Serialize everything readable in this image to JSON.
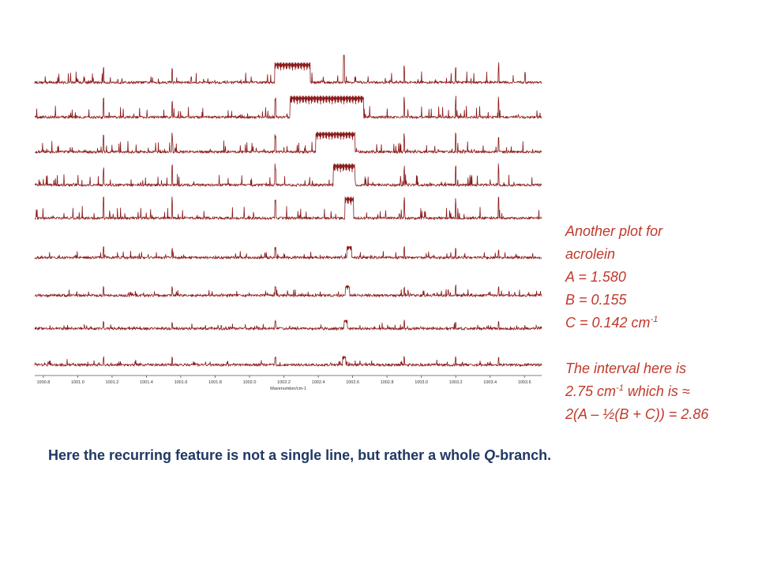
{
  "annotation": {
    "lines": [
      "Another plot for",
      "acrolein",
      "A = 1.580",
      "B = 0.155"
    ],
    "c_line": {
      "text": "C = 0.142 cm",
      "sup": "-1"
    },
    "interval_line1": "The interval here is",
    "interval_line2": {
      "text_a": "2.75 cm",
      "sup": "-1",
      "text_b": " which is ≈"
    },
    "interval_line3": "2(A – ½(B + C)) = 2.86"
  },
  "caption": {
    "prefix": "Here the recurring feature is not a single line, but rather a whole ",
    "italic": "Q",
    "suffix": "-branch."
  },
  "chart_data": {
    "type": "line",
    "xlabel": "Wavenumber/cm-1",
    "xlim": [
      1000.75,
      1003.7
    ],
    "x_ticks": [
      "1000.8",
      "1001.0",
      "1001.2",
      "1001.4",
      "1001.6",
      "1001.8",
      "1002.0",
      "1002.2",
      "1002.4",
      "1002.6",
      "1002.8",
      "1003.0",
      "1003.2",
      "1003.4",
      "1003.6"
    ],
    "x_tick_values": [
      1000.8,
      1001.0,
      1001.2,
      1001.4,
      1001.6,
      1001.8,
      1002.0,
      1002.2,
      1002.4,
      1002.6,
      1002.8,
      1003.0,
      1003.2,
      1003.4,
      1003.6
    ],
    "n_traces": 9,
    "trace_color": "#8b1a1a",
    "q_branch_centers": [
      1002.25,
      1002.45,
      1002.5,
      1002.55,
      1002.58,
      1002.58,
      1002.57,
      1002.56,
      1002.55
    ],
    "q_branch_widths": [
      0.2,
      0.42,
      0.22,
      0.12,
      0.04,
      0.02,
      0.015,
      0.01,
      0.01
    ],
    "strong_lines_x": [
      1001.15,
      1001.55,
      1002.15,
      1002.9,
      1003.2,
      1003.45
    ]
  }
}
